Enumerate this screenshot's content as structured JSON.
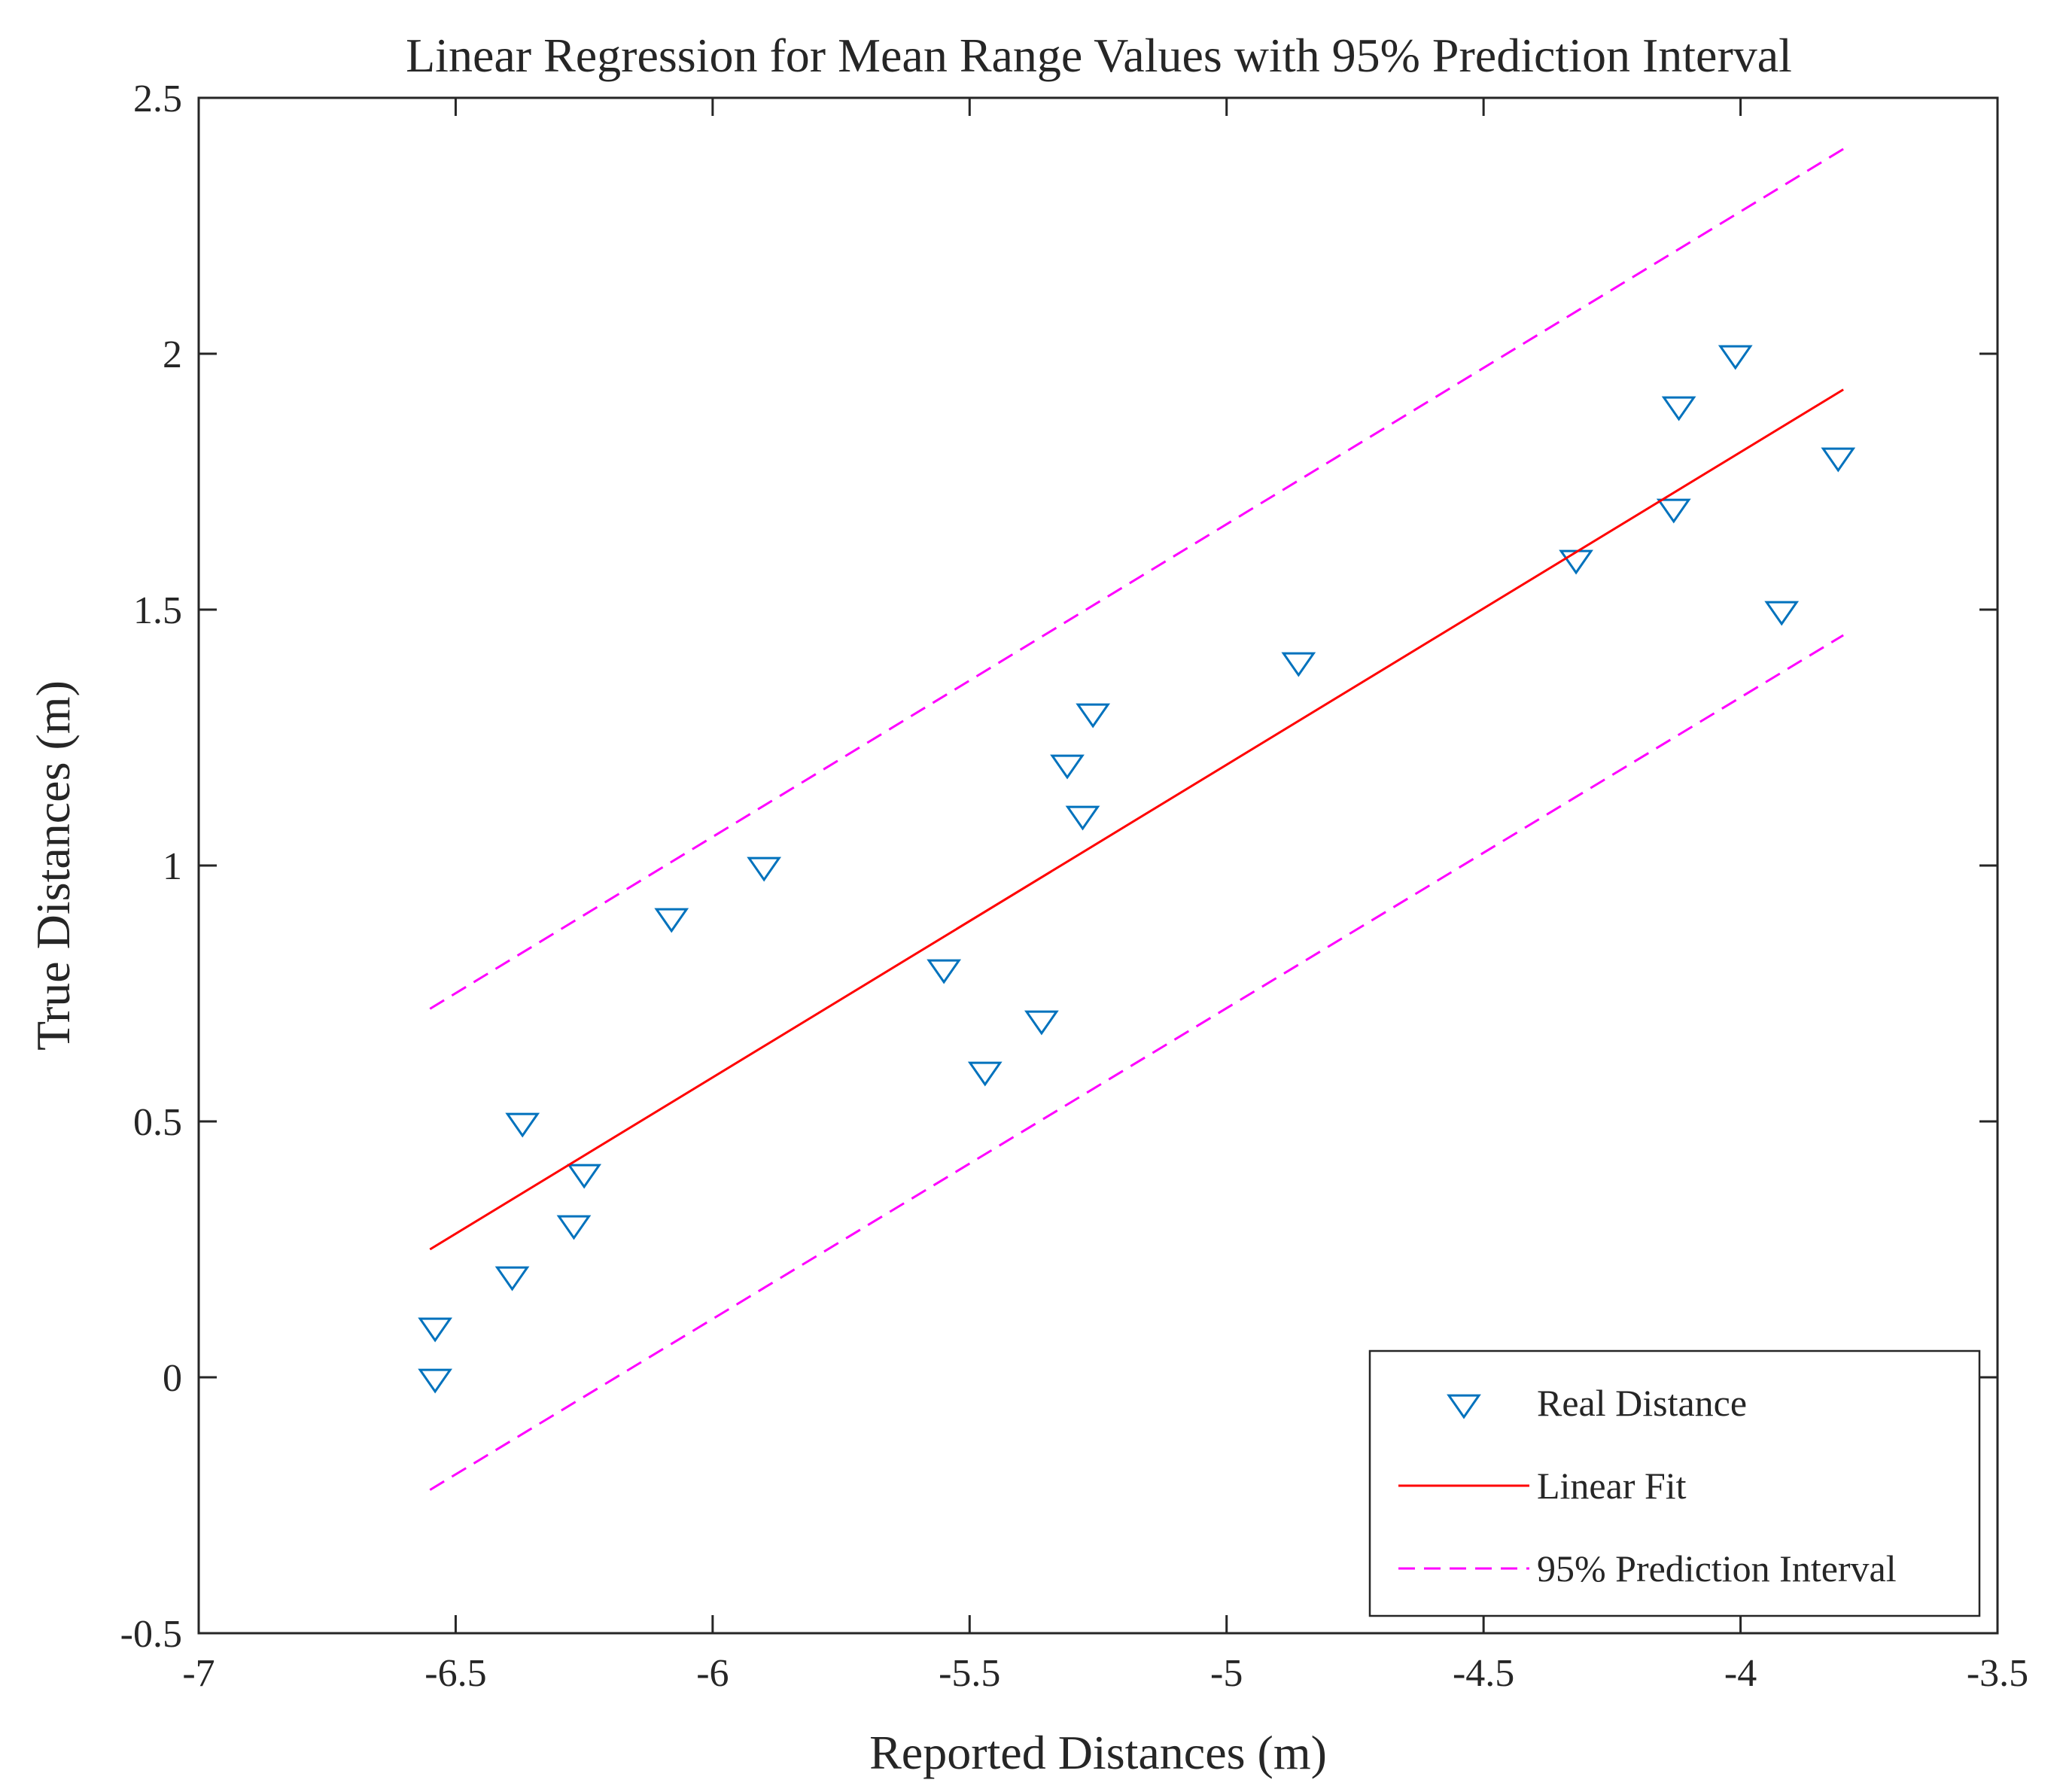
{
  "chart_data": {
    "type": "scatter",
    "title": "Linear Regression for Mean Range Values with 95% Prediction Interval",
    "xlabel": "Reported Distances (m)",
    "ylabel": "True Distances (m)",
    "xlim": [
      -7,
      -3.5
    ],
    "ylim": [
      -0.5,
      2.5
    ],
    "xticks": [
      -7,
      -6.5,
      -6,
      -5.5,
      -5,
      -4.5,
      -4,
      -3.5
    ],
    "xtick_labels": [
      "-7",
      "-6.5",
      "-6",
      "-5.5",
      "-5",
      "-4.5",
      "-4",
      "-3.5"
    ],
    "yticks": [
      -0.5,
      0,
      0.5,
      1,
      1.5,
      2,
      2.5
    ],
    "ytick_labels": [
      "-0.5",
      "0",
      "0.5",
      "1",
      "1.5",
      "2",
      "2.5"
    ],
    "grid": false,
    "legend_position": "bottom-right",
    "series": [
      {
        "name": "Real Distance",
        "kind": "scatter",
        "marker": "triangle-down",
        "color": "#0072bd",
        "points": [
          {
            "x": -6.54,
            "y": 0.0
          },
          {
            "x": -6.54,
            "y": 0.1
          },
          {
            "x": -6.39,
            "y": 0.2
          },
          {
            "x": -6.27,
            "y": 0.3
          },
          {
            "x": -6.25,
            "y": 0.4
          },
          {
            "x": -6.37,
            "y": 0.5
          },
          {
            "x": -5.47,
            "y": 0.6
          },
          {
            "x": -5.36,
            "y": 0.7
          },
          {
            "x": -5.55,
            "y": 0.8
          },
          {
            "x": -6.08,
            "y": 0.9
          },
          {
            "x": -5.9,
            "y": 1.0
          },
          {
            "x": -5.28,
            "y": 1.1
          },
          {
            "x": -5.31,
            "y": 1.2
          },
          {
            "x": -5.26,
            "y": 1.3
          },
          {
            "x": -4.86,
            "y": 1.4
          },
          {
            "x": -3.92,
            "y": 1.5
          },
          {
            "x": -4.32,
            "y": 1.6
          },
          {
            "x": -4.13,
            "y": 1.7
          },
          {
            "x": -3.81,
            "y": 1.8
          },
          {
            "x": -4.12,
            "y": 1.9
          },
          {
            "x": -4.01,
            "y": 2.0
          }
        ]
      },
      {
        "name": "Linear Fit",
        "kind": "line",
        "style": "solid",
        "color": "#ff0000",
        "x": [
          -6.55,
          -3.8
        ],
        "y": [
          0.25,
          1.93
        ]
      },
      {
        "name": "95% Prediction Interval",
        "kind": "line",
        "style": "dashed",
        "color": "#ff00ff",
        "x": [
          -6.55,
          -3.8
        ],
        "y": [
          0.72,
          2.4
        ]
      },
      {
        "name": "95% Prediction Interval (lower)",
        "kind": "line",
        "style": "dashed",
        "color": "#ff00ff",
        "in_legend": false,
        "x": [
          -6.55,
          -3.8
        ],
        "y": [
          -0.22,
          1.45
        ]
      }
    ]
  }
}
